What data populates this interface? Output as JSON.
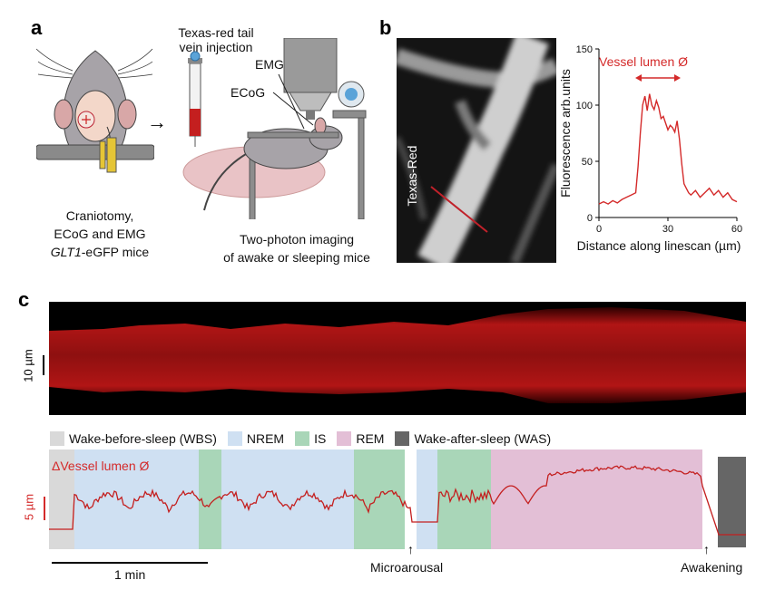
{
  "panels": {
    "a": {
      "letter": "a",
      "injection_label_1": "Texas-red tail",
      "injection_label_2": "vein injection",
      "emg_label": "EMG",
      "ecog_label": "ECoG",
      "left_caption_1": "Craniotomy,",
      "left_caption_2": "ECoG and EMG",
      "left_caption_3_italic": "GLT1",
      "left_caption_3_rest": "-eGFP mice",
      "right_caption_1": "Two-photon imaging",
      "right_caption_2": "of awake or sleeping mice"
    },
    "b": {
      "letter": "b",
      "image_label": "Texas-Red",
      "title": "Vessel lumen Ø"
    },
    "c": {
      "letter": "c",
      "scale_label": "10 µm",
      "legend": [
        {
          "label": "Wake-before-sleep (WBS)",
          "color": "#d9d9d9"
        },
        {
          "label": "NREM",
          "color": "#cfe0f2"
        },
        {
          "label": "IS",
          "color": "#a9d6b8"
        },
        {
          "label": "REM",
          "color": "#e3bfd6"
        },
        {
          "label": "Wake-after-sleep (WAS)",
          "color": "#666666"
        }
      ],
      "trace_label": "ΔVessel lumen Ø",
      "y_scale_label": "5 µm",
      "time_scale_label": "1 min",
      "microarousal_label": "Microarousal",
      "awakening_label": "Awakening"
    }
  },
  "chart_data": {
    "type": "line",
    "xlabel": "Distance along linescan (µm)",
    "ylabel": "Fluorescence arb.units",
    "xlim": [
      0,
      60
    ],
    "ylim": [
      0,
      150
    ],
    "xticks": [
      0,
      30,
      60
    ],
    "yticks": [
      0,
      50,
      100,
      150
    ],
    "series": [
      {
        "color": "#d42a2a",
        "x": [
          0,
          2,
          4,
          6,
          8,
          10,
          12,
          14,
          16,
          17,
          18,
          19,
          20,
          21,
          22,
          23,
          24,
          25,
          26,
          27,
          28,
          29,
          30,
          31,
          32,
          33,
          34,
          35,
          36,
          37,
          38,
          39,
          40,
          42,
          44,
          46,
          48,
          50,
          52,
          54,
          56,
          58,
          60
        ],
        "values": [
          12,
          14,
          12,
          15,
          13,
          16,
          18,
          20,
          22,
          45,
          75,
          100,
          108,
          95,
          110,
          100,
          96,
          104,
          98,
          88,
          90,
          84,
          78,
          82,
          80,
          76,
          86,
          70,
          48,
          30,
          26,
          22,
          20,
          24,
          18,
          22,
          26,
          20,
          24,
          18,
          22,
          16,
          14
        ]
      }
    ]
  }
}
